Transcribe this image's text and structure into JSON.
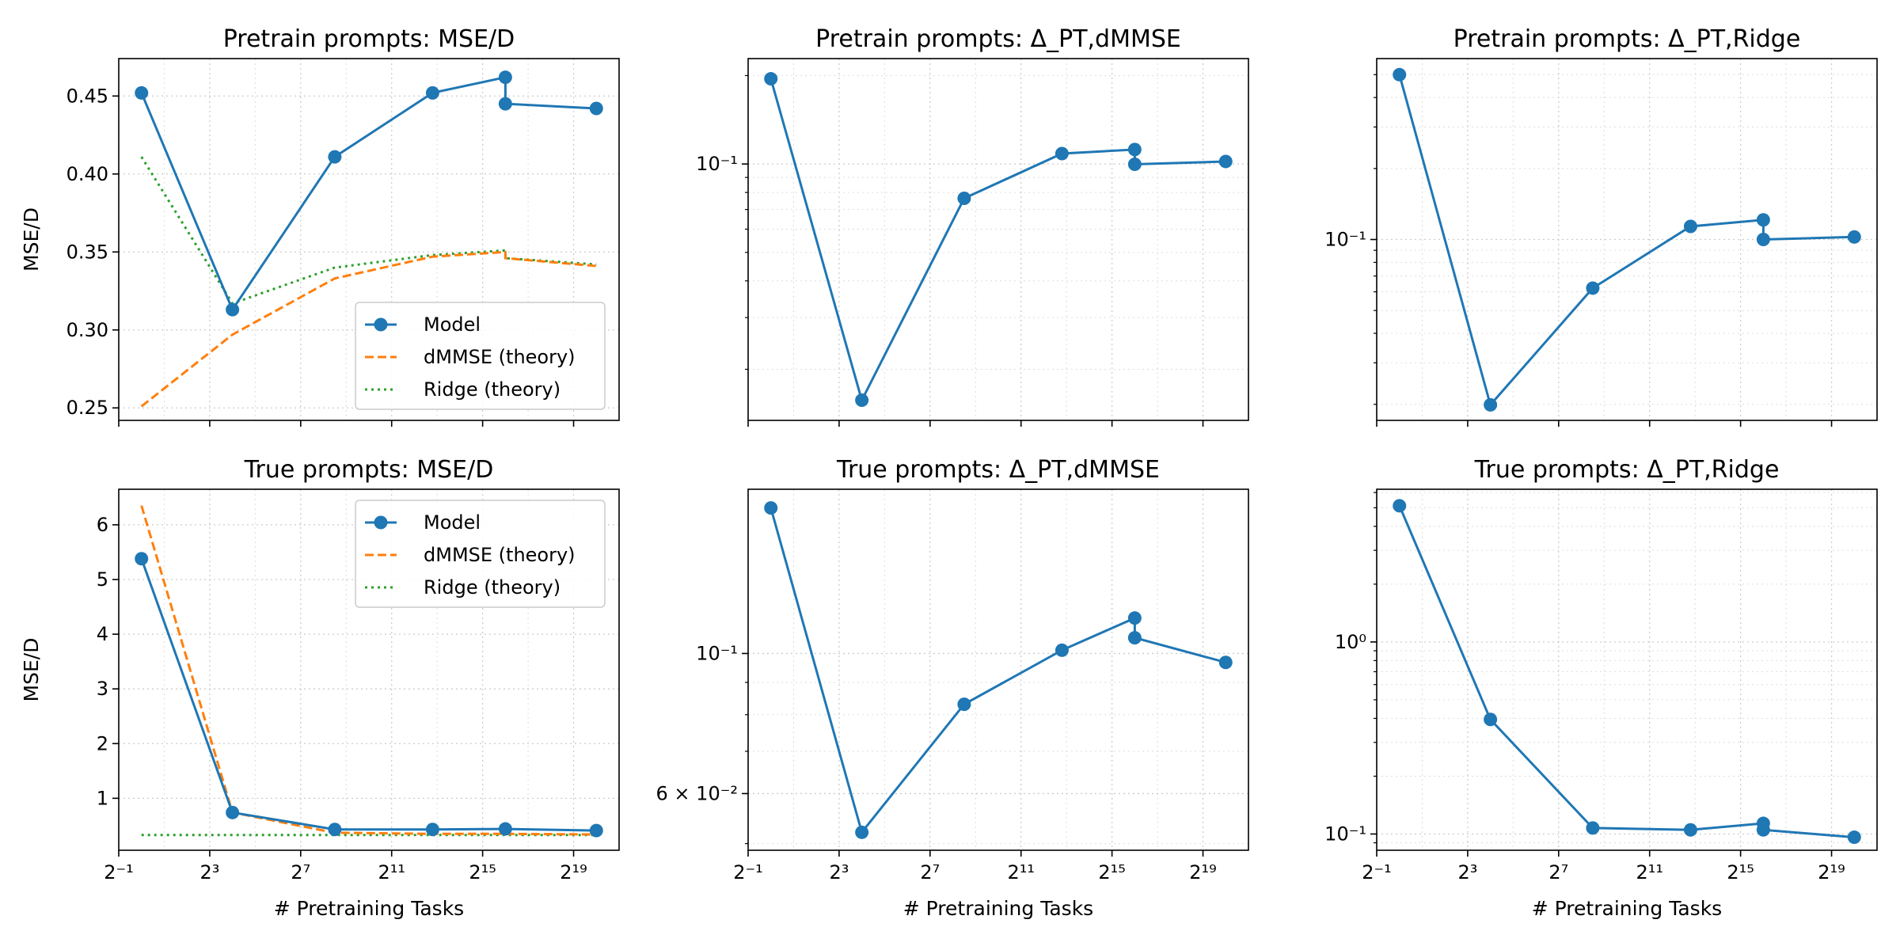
{
  "figure": {
    "xlabel": "# Pretraining Tasks",
    "colors": {
      "model": "#1f77b4",
      "dmmse": "#ff7f0e",
      "ridge": "#2ca02c"
    },
    "legend": [
      "Model",
      "dMMSE (theory)",
      "Ridge (theory)"
    ]
  },
  "chart_data": [
    {
      "id": "pt_mse",
      "type": "line",
      "title": "Pretrain prompts: MSE/D",
      "ylabel": "MSE/D",
      "xscale": "log2",
      "xlim": [
        -1,
        21
      ],
      "xticks": [
        -1,
        3,
        7,
        11,
        15,
        19
      ],
      "xtick_labels": [
        "2⁻¹",
        "2³",
        "2⁷",
        "2¹¹",
        "2¹⁵",
        "2¹⁹"
      ],
      "yscale": "linear",
      "ylim": [
        0.242,
        0.474
      ],
      "yticks": [
        0.25,
        0.3,
        0.35,
        0.4,
        0.45
      ],
      "ytick_labels": [
        "0.25",
        "0.30",
        "0.35",
        "0.40",
        "0.45"
      ],
      "grid": true,
      "legend_position": "lower-right",
      "series": [
        {
          "name": "Model",
          "style": "solid-marker",
          "x": [
            0,
            4,
            8.5,
            12.8,
            16,
            16,
            20
          ],
          "y": [
            0.452,
            0.313,
            0.411,
            0.452,
            0.462,
            0.445,
            0.442
          ]
        },
        {
          "name": "dMMSE (theory)",
          "style": "dashed",
          "x": [
            0,
            4,
            8.5,
            12.8,
            16,
            16,
            20
          ],
          "y": [
            0.251,
            0.297,
            0.333,
            0.347,
            0.35,
            0.346,
            0.341
          ]
        },
        {
          "name": "Ridge (theory)",
          "style": "dotted",
          "x": [
            0,
            4,
            8.5,
            12.8,
            16,
            16,
            20
          ],
          "y": [
            0.411,
            0.317,
            0.34,
            0.348,
            0.351,
            0.346,
            0.342
          ]
        }
      ]
    },
    {
      "id": "pt_dmmse",
      "type": "line",
      "title": "Pretrain prompts: Δ_PT,dMMSE",
      "ylabel": "",
      "xscale": "log2",
      "xlim": [
        -1,
        21
      ],
      "xticks": [
        -1,
        3,
        7,
        11,
        15,
        19
      ],
      "xtick_labels": [
        "2⁻¹",
        "2³",
        "2⁷",
        "2¹¹",
        "2¹⁵",
        "2¹⁹"
      ],
      "yscale": "log",
      "ylim": [
        0.0134,
        0.2285
      ],
      "yticks": [
        0.1
      ],
      "ytick_labels": [
        "10⁻¹"
      ],
      "grid": true,
      "series": [
        {
          "name": "",
          "style": "solid-marker",
          "x": [
            0,
            4,
            8.5,
            12.8,
            16,
            16,
            20
          ],
          "y": [
            0.195,
            0.0157,
            0.0764,
            0.1085,
            0.112,
            0.0998,
            0.102
          ]
        }
      ]
    },
    {
      "id": "pt_ridge",
      "type": "line",
      "title": "Pretrain prompts: Δ_PT,Ridge",
      "ylabel": "",
      "xscale": "log2",
      "xlim": [
        -1,
        21
      ],
      "xticks": [
        -1,
        3,
        7,
        11,
        15,
        19
      ],
      "xtick_labels": [
        "2⁻¹",
        "2³",
        "2⁷",
        "2¹¹",
        "2¹⁵",
        "2¹⁹"
      ],
      "yscale": "log",
      "ylim": [
        0.0171,
        0.585
      ],
      "yticks": [
        0.1
      ],
      "ytick_labels": [
        "10⁻¹"
      ],
      "grid": true,
      "series": [
        {
          "name": "",
          "style": "solid-marker",
          "x": [
            0,
            4,
            8.5,
            12.8,
            16,
            16,
            20
          ],
          "y": [
            0.5,
            0.0199,
            0.0622,
            0.1136,
            0.1211,
            0.1,
            0.1025
          ]
        }
      ]
    },
    {
      "id": "tr_mse",
      "type": "line",
      "title": "True prompts: MSE/D",
      "ylabel": "MSE/D",
      "xscale": "log2",
      "xlim": [
        -1,
        21
      ],
      "xticks": [
        -1,
        3,
        7,
        11,
        15,
        19
      ],
      "xtick_labels": [
        "2⁻¹",
        "2³",
        "2⁷",
        "2¹¹",
        "2¹⁵",
        "2¹⁹"
      ],
      "yscale": "linear",
      "ylim": [
        0.05,
        6.65
      ],
      "yticks": [
        1,
        2,
        3,
        4,
        5,
        6
      ],
      "ytick_labels": [
        "1",
        "2",
        "3",
        "4",
        "5",
        "6"
      ],
      "grid": true,
      "legend_position": "upper-right",
      "series": [
        {
          "name": "Model",
          "style": "solid-marker",
          "x": [
            0,
            4,
            8.5,
            12.8,
            16,
            20
          ],
          "y": [
            5.38,
            0.74,
            0.43,
            0.43,
            0.44,
            0.41
          ]
        },
        {
          "name": "dMMSE (theory)",
          "style": "dashed",
          "x": [
            0,
            4,
            8.5,
            12.8,
            16,
            20
          ],
          "y": [
            6.35,
            0.74,
            0.37,
            0.35,
            0.35,
            0.34
          ]
        },
        {
          "name": "Ridge (theory)",
          "style": "dotted",
          "x": [
            0,
            4,
            8.5,
            12.8,
            16,
            20
          ],
          "y": [
            0.33,
            0.33,
            0.33,
            0.33,
            0.33,
            0.33
          ]
        }
      ]
    },
    {
      "id": "tr_dmmse",
      "type": "line",
      "title": "True prompts: Δ_PT,dMMSE",
      "ylabel": "",
      "xscale": "log2",
      "xlim": [
        -1,
        21
      ],
      "xticks": [
        -1,
        3,
        7,
        11,
        15,
        19
      ],
      "xtick_labels": [
        "2⁻¹",
        "2³",
        "2⁷",
        "2¹¹",
        "2¹⁵",
        "2¹⁹"
      ],
      "yscale": "log",
      "ylim": [
        0.0488,
        0.182
      ],
      "yticks": [
        0.06,
        0.1
      ],
      "ytick_labels": [
        "6 × 10⁻²",
        "10⁻¹"
      ],
      "grid": true,
      "series": [
        {
          "name": "",
          "style": "solid-marker",
          "x": [
            0,
            4,
            8.5,
            12.8,
            16,
            16,
            20
          ],
          "y": [
            0.17,
            0.0521,
            0.0831,
            0.1012,
            0.1138,
            0.1059,
            0.0968
          ]
        }
      ]
    },
    {
      "id": "tr_ridge",
      "type": "line",
      "title": "True prompts: Δ_PT,Ridge",
      "ylabel": "",
      "xscale": "log2",
      "xlim": [
        -1,
        21
      ],
      "xticks": [
        -1,
        3,
        7,
        11,
        15,
        19
      ],
      "xtick_labels": [
        "2⁻¹",
        "2³",
        "2⁷",
        "2¹¹",
        "2¹⁵",
        "2¹⁹"
      ],
      "yscale": "log",
      "ylim": [
        0.0823,
        6.24
      ],
      "yticks": [
        0.1,
        1
      ],
      "ytick_labels": [
        "10⁻¹",
        "10⁰"
      ],
      "grid": true,
      "series": [
        {
          "name": "",
          "style": "solid-marker",
          "x": [
            0,
            4,
            8.5,
            12.8,
            16,
            16,
            20
          ],
          "y": [
            5.12,
            0.395,
            0.1075,
            0.1051,
            0.1136,
            0.1051,
            0.0962
          ]
        }
      ]
    }
  ]
}
